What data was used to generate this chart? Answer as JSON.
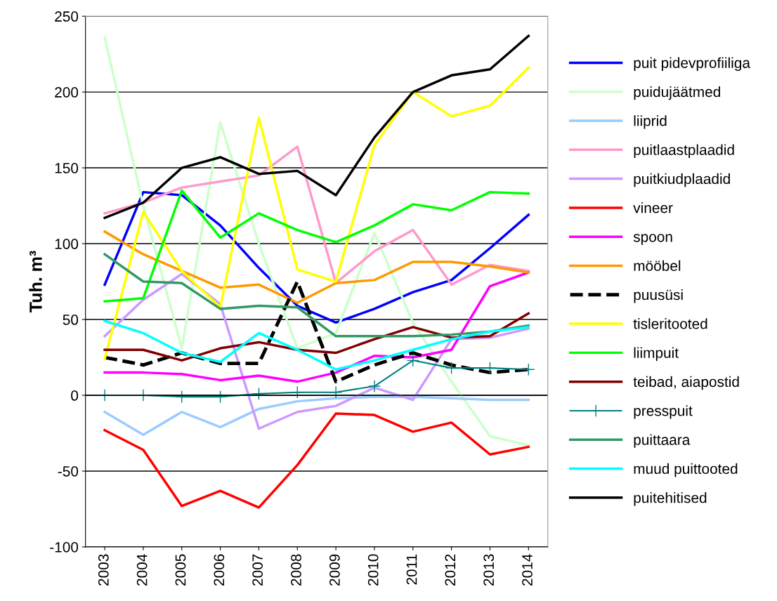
{
  "chart_data": {
    "type": "line",
    "ylabel": "Tuh. m³",
    "categories": [
      "2003",
      "2004",
      "2005",
      "2006",
      "2007",
      "2008",
      "2009",
      "2010",
      "2011",
      "2012",
      "2013",
      "2014"
    ],
    "ylim": [
      -100,
      250
    ],
    "yticks": [
      -100,
      -50,
      0,
      50,
      100,
      150,
      200,
      250
    ],
    "grid": "y",
    "legend": "right",
    "series": [
      {
        "name": "puit pidevprofiiliga",
        "color": "#0000ff",
        "values": [
          73,
          134,
          132,
          112,
          84,
          59,
          48,
          57,
          68,
          76,
          97,
          119
        ]
      },
      {
        "name": "puidujäätmed",
        "color": "#ccffcc",
        "values": [
          236,
          125,
          31,
          180,
          100,
          31,
          41,
          107,
          48,
          9,
          -27,
          -33
        ]
      },
      {
        "name": "liiprid",
        "color": "#99ccff",
        "values": [
          -11,
          -26,
          -11,
          -21,
          -9,
          -4,
          -2,
          -1,
          -1,
          -2,
          -3,
          -3
        ]
      },
      {
        "name": "puitlaastplaadid",
        "color": "#ff99cc",
        "values": [
          120,
          127,
          137,
          141,
          145,
          164,
          74,
          95,
          109,
          73,
          86,
          82
        ]
      },
      {
        "name": "puitkiudplaadid",
        "color": "#cc99ff",
        "values": [
          39,
          63,
          80,
          60,
          -22,
          -11,
          -7,
          5,
          -3,
          37,
          38,
          44
        ]
      },
      {
        "name": "vineer",
        "color": "#ff0000",
        "values": [
          -23,
          -36,
          -73,
          -63,
          -74,
          -46,
          -12,
          -13,
          -24,
          -18,
          -39,
          -34
        ]
      },
      {
        "name": "spoon",
        "color": "#ff00ff",
        "values": [
          15,
          15,
          14,
          10,
          13,
          9,
          15,
          26,
          25,
          30,
          72,
          81
        ]
      },
      {
        "name": "mööbel",
        "color": "#ff9900",
        "values": [
          108,
          93,
          82,
          71,
          73,
          61,
          74,
          76,
          88,
          88,
          85,
          81
        ]
      },
      {
        "name": "puusüsi",
        "color": "#000000",
        "line_style": "dashed",
        "values": [
          25,
          20,
          28,
          21,
          21,
          75,
          9,
          20,
          28,
          20,
          15,
          17
        ]
      },
      {
        "name": "tisleritooted",
        "color": "#ffff00",
        "values": [
          24,
          121,
          82,
          58,
          183,
          83,
          75,
          165,
          200,
          184,
          191,
          216
        ]
      },
      {
        "name": "liimpuit",
        "color": "#00ff00",
        "values": [
          62,
          64,
          135,
          104,
          120,
          109,
          101,
          112,
          126,
          122,
          134,
          133
        ]
      },
      {
        "name": "teibad, aiapostid",
        "color": "#800000",
        "values": [
          30,
          30,
          23,
          31,
          35,
          30,
          28,
          37,
          45,
          38,
          39,
          54
        ]
      },
      {
        "name": "presspuit",
        "color": "#008080",
        "marker": "cross",
        "values": [
          0,
          0,
          -1,
          -1,
          1,
          2,
          2,
          6,
          23,
          18,
          18,
          17
        ]
      },
      {
        "name": "puittaara",
        "color": "#339966",
        "values": [
          93,
          75,
          74,
          57,
          59,
          58,
          39,
          39,
          39,
          40,
          42,
          46
        ]
      },
      {
        "name": "muud puittooted",
        "color": "#00ffff",
        "values": [
          49,
          41,
          28,
          22,
          41,
          30,
          17,
          23,
          30,
          37,
          42,
          45
        ]
      },
      {
        "name": "puitehitised",
        "color": "#000000",
        "values": [
          117,
          127,
          150,
          157,
          146,
          148,
          132,
          170,
          200,
          211,
          215,
          237
        ]
      }
    ]
  }
}
